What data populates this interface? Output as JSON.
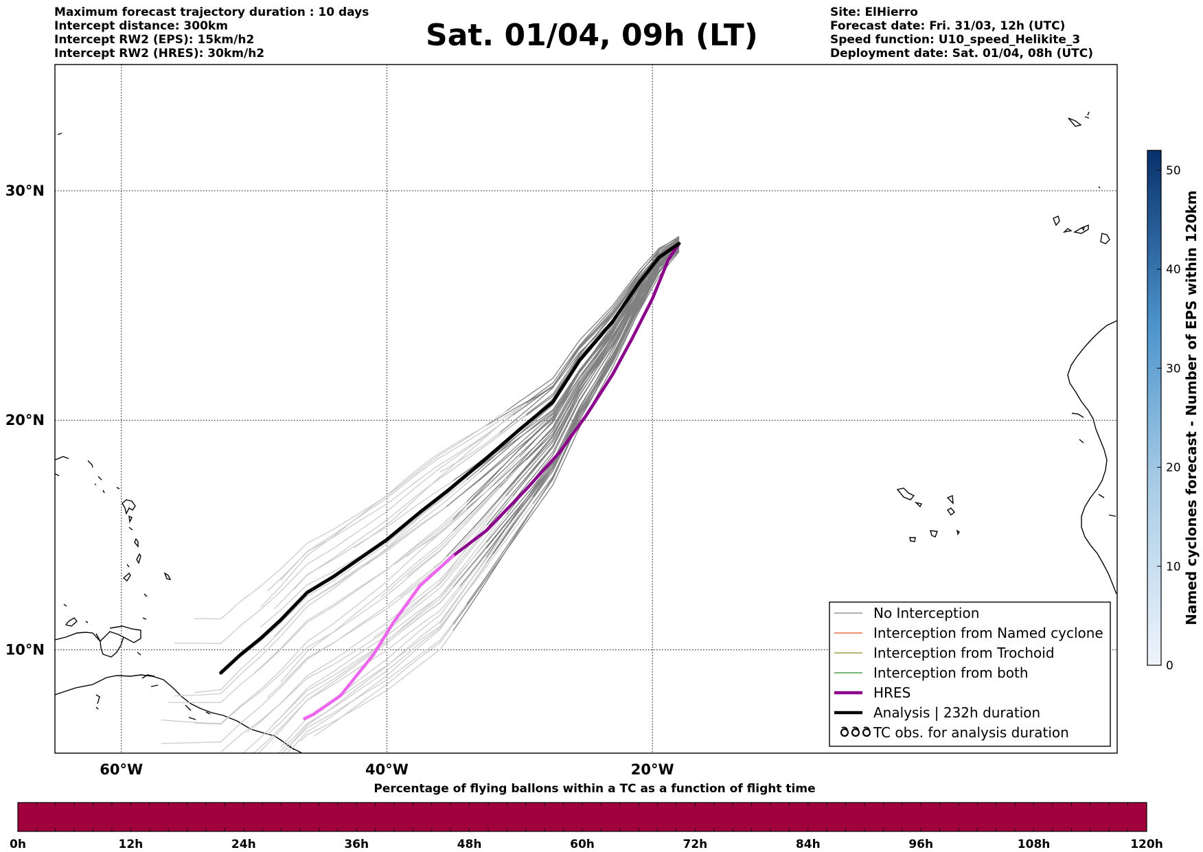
{
  "header_left": [
    "Maximum forecast trajectory duration : 10 days",
    "Intercept distance: 300km",
    "Intercept RW2 (EPS):  15km/h2",
    "Intercept RW2 (HRES): 30km/h2"
  ],
  "header_right": [
    "Site: ElHierro",
    "Forecast date: Fri. 31/03, 12h (UTC)",
    "Speed function: U10_speed_Helikite_3",
    "Deployment date: Sat. 01/04, 08h (UTC)"
  ],
  "title": "Sat. 01/04, 09h (LT)",
  "map": {
    "lon_range": [
      -65,
      15
    ],
    "lat_range": [
      5.5,
      35.5
    ],
    "lon_ticks": [
      {
        "value": -60,
        "label": "60°W"
      },
      {
        "value": -40,
        "label": "40°W"
      },
      {
        "value": -20,
        "label": "20°W"
      }
    ],
    "lat_ticks": [
      {
        "value": 10,
        "label": "10°N"
      },
      {
        "value": 20,
        "label": "20°N"
      },
      {
        "value": 30,
        "label": "30°N"
      }
    ],
    "grid": true,
    "launch_site": {
      "lon": -18.0,
      "lat": 27.7
    }
  },
  "colors": {
    "no_interception": "#808080",
    "no_interception_late": "#cccccc",
    "named_cyclone": "#e8501a",
    "trochoid": "#8a8a1c",
    "both": "#2e8b2e",
    "hres": "#8b008b",
    "hres_late": "#ee66ee",
    "analysis": "#000000",
    "pct_bar": "#a0003c"
  },
  "trajectories": {
    "analysis": [
      [
        -18.0,
        27.7
      ],
      [
        -19.5,
        27.1
      ],
      [
        -21.0,
        26.0
      ],
      [
        -23.0,
        24.3
      ],
      [
        -25.5,
        22.6
      ],
      [
        -27.5,
        20.8
      ],
      [
        -30.0,
        19.6
      ],
      [
        -33.0,
        18.1
      ],
      [
        -35.5,
        16.9
      ],
      [
        -37.5,
        16.0
      ],
      [
        -40.0,
        14.8
      ],
      [
        -44.0,
        13.2
      ],
      [
        -46.0,
        12.5
      ],
      [
        -48.0,
        11.3
      ],
      [
        -49.5,
        10.5
      ],
      [
        -51.0,
        9.8
      ],
      [
        -52.5,
        9.0
      ]
    ],
    "hres": [
      [
        -18.0,
        27.7
      ],
      [
        -18.8,
        27.0
      ],
      [
        -20.0,
        25.3
      ],
      [
        -21.5,
        23.6
      ],
      [
        -23.0,
        22.0
      ],
      [
        -25.0,
        20.2
      ],
      [
        -27.0,
        18.6
      ],
      [
        -29.5,
        17.0
      ],
      [
        -32.5,
        15.2
      ],
      [
        -35.0,
        14.1
      ],
      [
        -37.5,
        12.8
      ],
      [
        -39.5,
        11.2
      ],
      [
        -41.0,
        9.8
      ],
      [
        -43.5,
        8.0
      ],
      [
        -45.5,
        7.2
      ],
      [
        -46.2,
        7.0
      ]
    ],
    "ensemble_count": 50
  },
  "legend": [
    {
      "label": "No Interception",
      "style": "thin",
      "color": "#808080"
    },
    {
      "label": "Interception from Named cyclone",
      "style": "thin",
      "color": "#e8501a"
    },
    {
      "label": "Interception from Trochoid",
      "style": "thin",
      "color": "#8a8a1c"
    },
    {
      "label": "Interception from both",
      "style": "thin",
      "color": "#2e8b2e"
    },
    {
      "label": "HRES",
      "style": "thick",
      "color": "#8b008b"
    },
    {
      "label": "Analysis | 232h duration",
      "style": "thick",
      "color": "#000000"
    },
    {
      "label": "TC obs. for analysis duration",
      "style": "symbol",
      "color": "#000000"
    }
  ],
  "colorbar": {
    "label": "Named cyclones forecast - Number of EPS within 120km",
    "min": 0,
    "max": 52,
    "ticks": [
      0,
      10,
      20,
      30,
      40,
      50
    ],
    "color_low": "#e8f0fa",
    "color_high": "#08306b"
  },
  "pct_bar": {
    "title": "Percentage of flying ballons within a TC as a function of flight time",
    "ticks": [
      "0h",
      "12h",
      "24h",
      "36h",
      "48h",
      "60h",
      "72h",
      "84h",
      "96h",
      "108h",
      "120h"
    ],
    "value_pct": 0
  }
}
